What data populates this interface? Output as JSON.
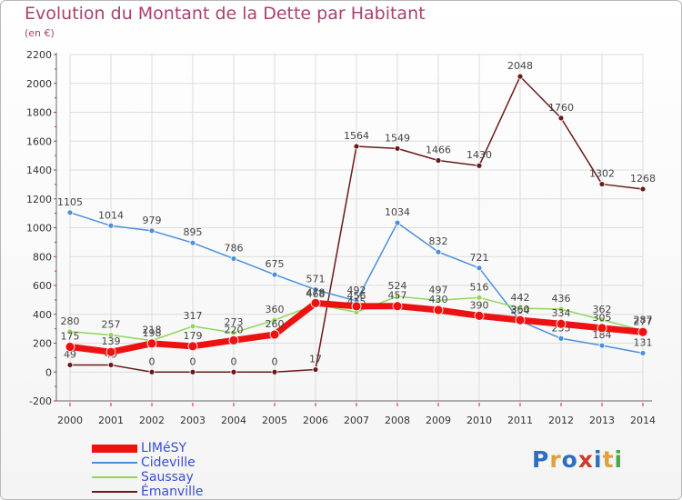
{
  "title": "Evolution du Montant de la Dette par Habitant",
  "subtitle": "(en €)",
  "logo": {
    "text": "Proxiti",
    "letter_colors": [
      "#2c6fbf",
      "#e0a13a",
      "#2c6fbf",
      "#cf3b2a",
      "#2c6fbf",
      "#e0a13a",
      "#4aa84a"
    ]
  },
  "chart_data": {
    "type": "line",
    "title": "Evolution du Montant de la Dette par Habitant",
    "subtitle": "(en €)",
    "xlabel": "",
    "ylabel": "",
    "x": [
      2000,
      2001,
      2002,
      2003,
      2004,
      2005,
      2006,
      2007,
      2008,
      2009,
      2010,
      2011,
      2012,
      2013,
      2014
    ],
    "ylim": [
      -200,
      2200
    ],
    "yticks": [
      -200,
      0,
      200,
      400,
      600,
      800,
      1000,
      1200,
      1400,
      1600,
      1800,
      2000,
      2200
    ],
    "grid": true,
    "legend": "bottom-left",
    "series": [
      {
        "name": "Émanville",
        "color": "#6b1a1a",
        "values": [
          49,
          49,
          0,
          0,
          0,
          0,
          17,
          1564,
          1549,
          1466,
          1430,
          2048,
          1760,
          1302,
          1268
        ]
      },
      {
        "name": "Cideville",
        "color": "#4a90d9",
        "values": [
          1105,
          1014,
          979,
          895,
          786,
          675,
          571,
          492,
          1034,
          832,
          721,
          354,
          233,
          184,
          131
        ]
      },
      {
        "name": "Saussay",
        "color": "#8fd65a",
        "values": [
          280,
          257,
          218,
          317,
          273,
          360,
          468,
          415,
          524,
          497,
          516,
          442,
          436,
          362,
          287
        ]
      },
      {
        "name": "LIMéSY",
        "color": "#ee1111",
        "values": [
          175,
          139,
          198,
          179,
          220,
          260,
          478,
          456,
          457,
          430,
          390,
          360,
          334,
          305,
          277
        ]
      }
    ],
    "legend_order": [
      "LIMéSY",
      "Cideville",
      "Saussay",
      "Émanville"
    ]
  }
}
